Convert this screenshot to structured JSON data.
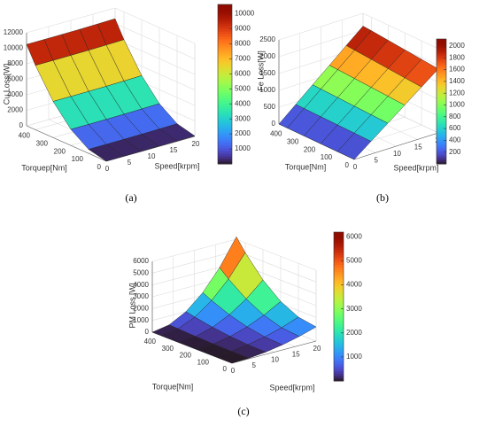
{
  "chart_data": [
    {
      "type": "surface",
      "caption": "(a)",
      "zlabel": "Cu Loss[W]",
      "xlabel": "Speed[krpm]",
      "ylabel": "Torquep[Nm]",
      "x": [
        0,
        4,
        8,
        12,
        16,
        20
      ],
      "y": [
        0,
        100,
        200,
        300,
        400,
        450
      ],
      "z": [
        [
          0,
          0,
          0,
          20,
          40,
          60
        ],
        [
          520,
          520,
          530,
          550,
          580,
          620
        ],
        [
          2080,
          2080,
          2090,
          2110,
          2150,
          2200
        ],
        [
          4670,
          4670,
          4680,
          4700,
          4740,
          4800
        ],
        [
          8300,
          8300,
          8310,
          8330,
          8370,
          8420
        ],
        [
          10500,
          10500,
          10510,
          10530,
          10570,
          10620
        ]
      ],
      "xlim": [
        0,
        20
      ],
      "ylim": [
        0,
        450
      ],
      "zlim": [
        0,
        12000
      ],
      "xticks": [
        0,
        5,
        10,
        15,
        20
      ],
      "yticks": [
        0,
        100,
        200,
        300,
        400
      ],
      "zticks": [
        0,
        2000,
        4000,
        6000,
        8000,
        10000,
        12000
      ],
      "clim": [
        0,
        10620
      ],
      "cticks": [
        1000,
        2000,
        3000,
        4000,
        5000,
        6000,
        7000,
        8000,
        9000,
        10000
      ],
      "colormap": "turbo",
      "grid": true
    },
    {
      "type": "surface",
      "caption": "(b)",
      "zlabel": "Fe Loss[W]",
      "xlabel": "Speed[krpm]",
      "ylabel": "Torque[Nm]",
      "x": [
        0,
        4,
        8,
        12,
        16,
        20
      ],
      "y": [
        0,
        100,
        200,
        300,
        400,
        450
      ],
      "z": [
        [
          0,
          380,
          760,
          1140,
          1520,
          1900
        ],
        [
          0,
          390,
          780,
          1170,
          1560,
          1950
        ],
        [
          0,
          400,
          800,
          1200,
          1600,
          2000
        ],
        [
          0,
          410,
          820,
          1230,
          1640,
          2050
        ],
        [
          0,
          420,
          840,
          1260,
          1680,
          2100
        ],
        [
          0,
          425,
          850,
          1270,
          1700,
          2120
        ]
      ],
      "xlim": [
        0,
        20
      ],
      "ylim": [
        0,
        450
      ],
      "zlim": [
        0,
        2500
      ],
      "xticks": [
        0,
        5,
        10,
        15,
        20
      ],
      "yticks": [
        0,
        100,
        200,
        300,
        400
      ],
      "zticks": [
        0,
        500,
        1000,
        1500,
        2000,
        2500
      ],
      "clim": [
        0,
        2120
      ],
      "cticks": [
        200,
        400,
        600,
        800,
        1000,
        1200,
        1400,
        1600,
        1800,
        2000
      ],
      "colormap": "turbo",
      "grid": true
    },
    {
      "type": "surface",
      "caption": "(c)",
      "zlabel": "PM Loss [W]",
      "xlabel": "Speed[krpm]",
      "ylabel": "Torque[Nm]",
      "x": [
        0,
        4,
        8,
        12,
        16,
        20
      ],
      "y": [
        0,
        100,
        200,
        300,
        400,
        450
      ],
      "z": [
        [
          0,
          48,
          192,
          432,
          768,
          1200
        ],
        [
          0,
          58,
          232,
          521,
          926,
          1447
        ],
        [
          0,
          88,
          350,
          788,
          1400,
          2188
        ],
        [
          0,
          137,
          548,
          1232,
          2190,
          3422
        ],
        [
          0,
          206,
          824,
          1854,
          3297,
          5151
        ],
        [
          0,
          248,
          992,
          2232,
          3968,
          6200
        ]
      ],
      "xlim": [
        0,
        20
      ],
      "ylim": [
        0,
        450
      ],
      "zlim": [
        0,
        6000
      ],
      "xticks": [
        0,
        5,
        10,
        15,
        20
      ],
      "yticks": [
        0,
        100,
        200,
        300,
        400
      ],
      "zticks": [
        0,
        1000,
        2000,
        3000,
        4000,
        5000,
        6000
      ],
      "clim": [
        0,
        6200
      ],
      "cticks": [
        1000,
        2000,
        3000,
        4000,
        5000,
        6000
      ],
      "colormap": "turbo",
      "grid": true
    }
  ]
}
